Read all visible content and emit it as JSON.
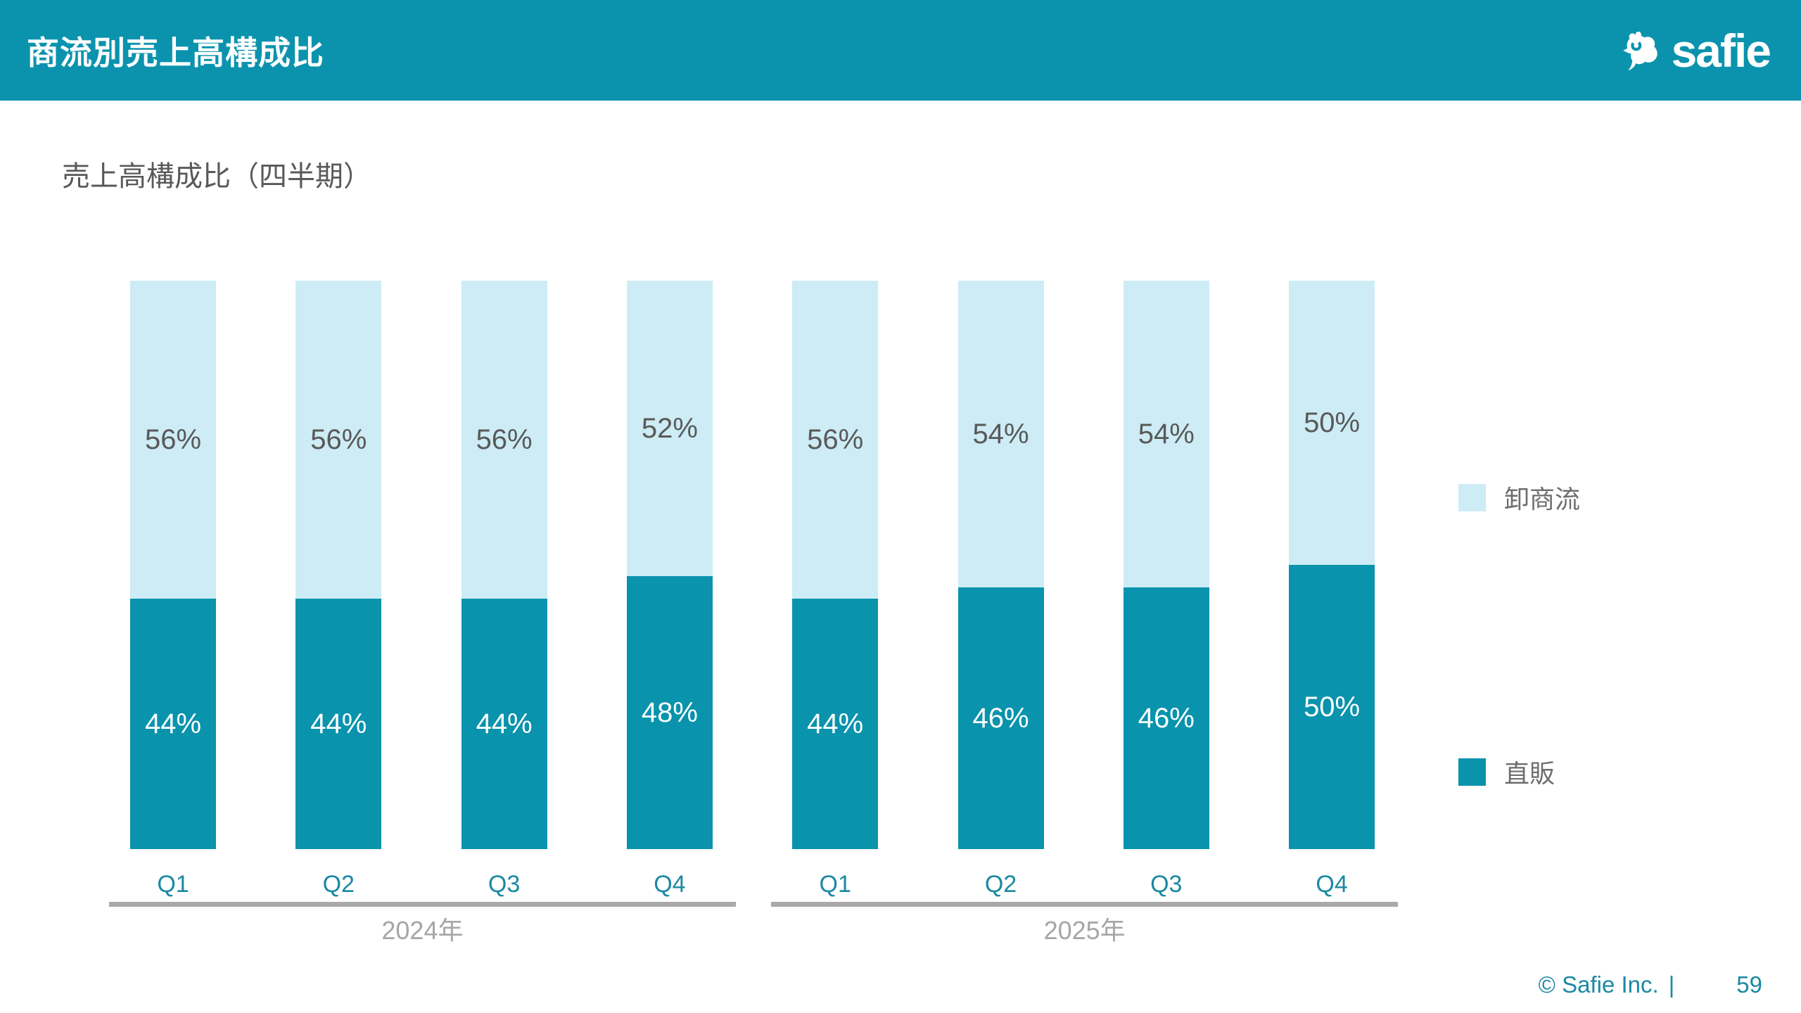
{
  "header": {
    "title": "商流別売上高構成比",
    "logo_text": "safie",
    "background_color": "#0b93ae"
  },
  "main": {
    "subtitle": "売上高構成比（四半期）"
  },
  "chart_data": {
    "type": "bar",
    "subtype": "stacked-100-percent-column",
    "categories": [
      "Q1",
      "Q2",
      "Q3",
      "Q4",
      "Q1",
      "Q2",
      "Q3",
      "Q4"
    ],
    "groups": [
      {
        "year_label": "2024年",
        "start": 0,
        "count": 4
      },
      {
        "year_label": "2025年",
        "start": 4,
        "count": 4
      }
    ],
    "series": [
      {
        "name": "直販",
        "color": "#0993ad",
        "label_color": "#ffffff",
        "values": [
          44,
          44,
          44,
          48,
          44,
          46,
          46,
          50
        ]
      },
      {
        "name": "卸商流",
        "color": "#cdecf5",
        "label_color": "#595959",
        "values": [
          56,
          56,
          56,
          52,
          56,
          54,
          54,
          50
        ]
      }
    ],
    "value_suffix": "%",
    "ylim": [
      0,
      100
    ],
    "grid": false,
    "legend_position": "right",
    "axis_color": "#a9a9a9",
    "category_label_color": "#1b89a3",
    "year_label_color": "#a6a6a6"
  },
  "footer": {
    "copyright": "© Safie Inc.",
    "separator": "|",
    "page_number": "59"
  }
}
